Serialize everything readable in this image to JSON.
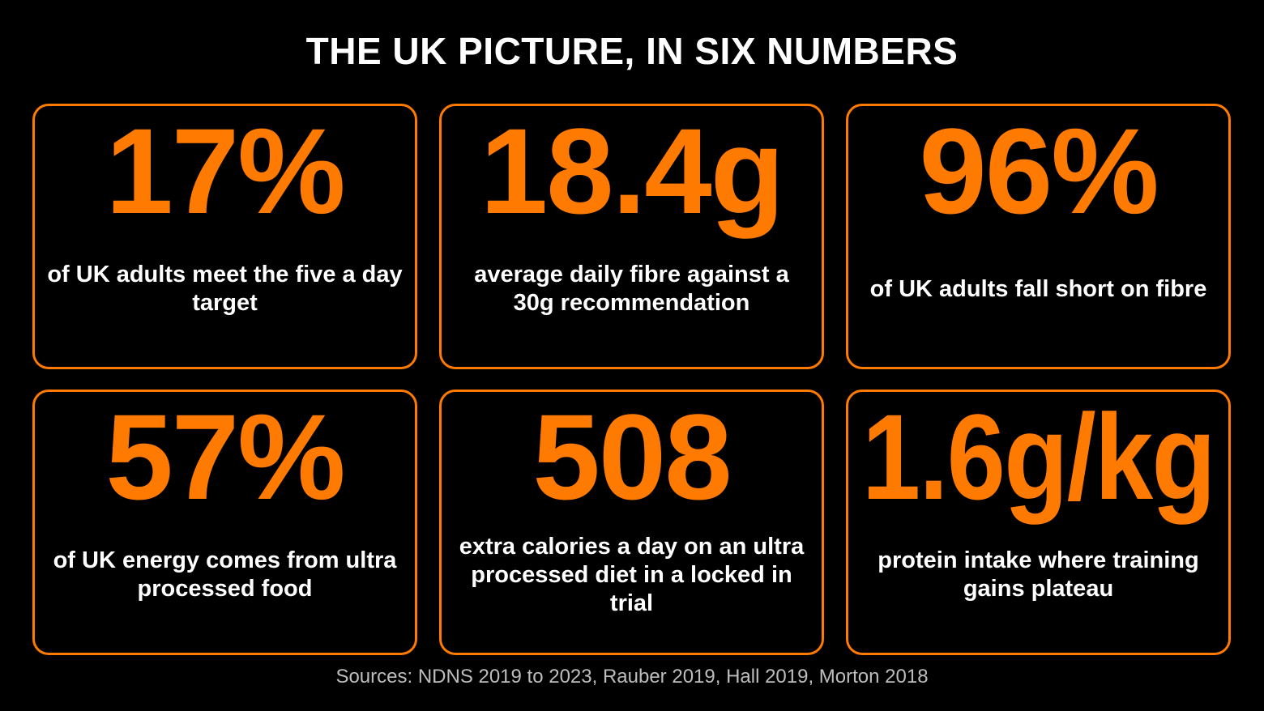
{
  "header": {
    "title": "THE UK PICTURE, IN SIX NUMBERS"
  },
  "cards": [
    {
      "stat": "17%",
      "text": "of UK adults meet the five a day target"
    },
    {
      "stat": "18.4g",
      "text": "average daily fibre against a 30g recommendation"
    },
    {
      "stat": "96%",
      "text": "of UK adults fall short on fibre"
    },
    {
      "stat": "57%",
      "text": "of UK energy comes from ultra processed food"
    },
    {
      "stat": "508",
      "text": "extra calories a day on an ultra processed diet in a locked in trial"
    },
    {
      "stat": "1.6g/kg",
      "text": "protein intake where training gains plateau"
    }
  ],
  "footer": {
    "sources": "Sources: NDNS 2019 to 2023, Rauber 2019, Hall 2019, Morton 2018"
  }
}
